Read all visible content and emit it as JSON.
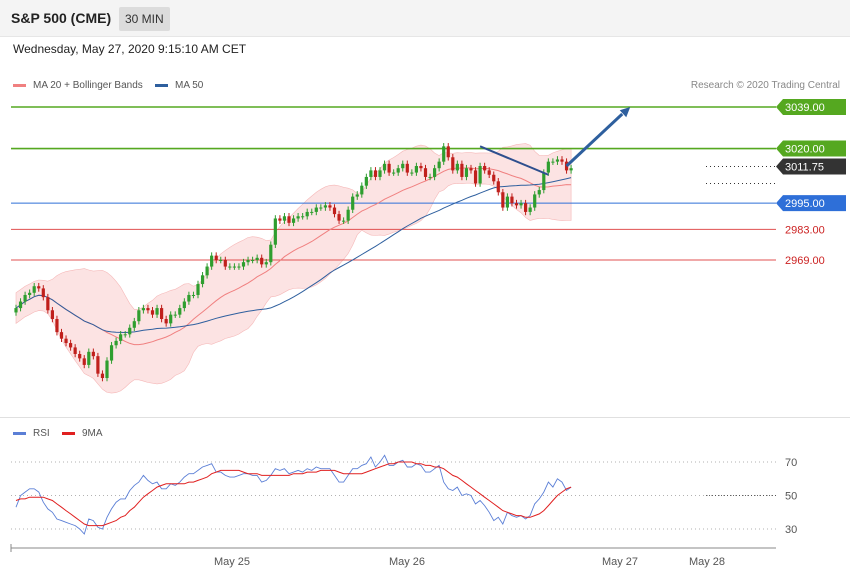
{
  "header": {
    "title": "S&P 500 (CME)",
    "timeframe": "30 MIN",
    "datetime": "Wednesday, May 27, 2020 9:15:10 AM CET",
    "credit": "Research © 2020 Trading Central"
  },
  "legend_main": [
    {
      "label": "MA 20 + Bollinger Bands",
      "color": "#f08080"
    },
    {
      "label": "MA 50",
      "color": "#2e5f9e"
    }
  ],
  "legend_rsi": [
    {
      "label": "RSI",
      "color": "#5b7fd6"
    },
    {
      "label": "9MA",
      "color": "#e02020"
    }
  ],
  "colors": {
    "bull": "#2f9e2f",
    "bear": "#c0201c",
    "resistance": "#55a820",
    "pivot": "#2e6fd8",
    "support": "#e05050",
    "current": "#333333"
  },
  "chart_data": [
    {
      "type": "candlestick",
      "title": "S&P 500 (CME) 30 MIN",
      "ylim": [
        2900,
        3050
      ],
      "x_ticks": [
        "May 25",
        "May 26",
        "May 27",
        "May 28"
      ],
      "levels": [
        {
          "label": "3039.00",
          "value": 3039.0,
          "kind": "resistance"
        },
        {
          "label": "3020.00",
          "value": 3020.0,
          "kind": "resistance"
        },
        {
          "label": "3011.75",
          "value": 3011.75,
          "kind": "current"
        },
        {
          "label": "2995.00",
          "value": 2995.0,
          "kind": "pivot"
        },
        {
          "label": "2983.00",
          "value": 2983.0,
          "kind": "support"
        },
        {
          "label": "2969.00",
          "value": 2969.0,
          "kind": "support"
        }
      ],
      "closes": [
        2947,
        2950,
        2953,
        2954,
        2957,
        2956,
        2952,
        2946,
        2942,
        2936,
        2933,
        2931,
        2929,
        2926,
        2924,
        2921,
        2927,
        2925,
        2917,
        2915,
        2923,
        2930,
        2932,
        2935,
        2935,
        2938,
        2941,
        2946,
        2947,
        2946,
        2944,
        2947,
        2942,
        2940,
        2944,
        2944,
        2947,
        2950,
        2953,
        2953,
        2958,
        2962,
        2966,
        2971,
        2969,
        2969,
        2966,
        2966,
        2966,
        2966,
        2968,
        2969,
        2969,
        2970,
        2967,
        2968,
        2976,
        2988,
        2987,
        2989,
        2986,
        2988,
        2989,
        2989,
        2991,
        2991,
        2993,
        2993,
        2994,
        2993,
        2990,
        2987,
        2987,
        2992,
        2998,
        2999,
        3003,
        3007,
        3010,
        3007,
        3010,
        3013,
        3009,
        3009,
        3011,
        3013,
        3009,
        3009,
        3012,
        3011,
        3007,
        3007,
        3011,
        3014,
        3021,
        3016,
        3010,
        3013,
        3007,
        3011,
        3010,
        3004,
        3012,
        3010,
        3008,
        3005,
        3000,
        2993,
        2998,
        2995,
        2994,
        2995,
        2991,
        2993,
        2999,
        3001,
        3009,
        3014,
        3014,
        3015,
        3014,
        3010,
        3011
      ],
      "annotations": [
        {
          "type": "trendline",
          "from": [
            102,
            3021
          ],
          "to": [
            117,
            3008
          ]
        },
        {
          "type": "arrow",
          "from": [
            121,
            3012
          ],
          "to": [
            135,
            3039
          ]
        }
      ]
    },
    {
      "type": "line",
      "title": "RSI",
      "ylim": [
        20,
        80
      ],
      "y_ticks": [
        70,
        50,
        30
      ],
      "series": [
        {
          "name": "RSI",
          "values": [
            43,
            50,
            52,
            54,
            54,
            52,
            46,
            42,
            40,
            36,
            35,
            34,
            33,
            32,
            30,
            27,
            36,
            35,
            31,
            30,
            37,
            42,
            46,
            48,
            48,
            53,
            56,
            58,
            62,
            59,
            57,
            58,
            54,
            54,
            57,
            56,
            58,
            61,
            63,
            63,
            65,
            67,
            68,
            69,
            64,
            64,
            62,
            61,
            61,
            62,
            63,
            63,
            62,
            62,
            58,
            59,
            62,
            66,
            65,
            66,
            63,
            64,
            65,
            64,
            66,
            65,
            67,
            66,
            66,
            66,
            62,
            58,
            58,
            62,
            66,
            66,
            68,
            69,
            73,
            67,
            70,
            74,
            68,
            68,
            70,
            71,
            67,
            67,
            69,
            68,
            64,
            64,
            66,
            68,
            58,
            54,
            53,
            55,
            50,
            51,
            50,
            45,
            47,
            44,
            40,
            35,
            37,
            33,
            40,
            38,
            37,
            38,
            36,
            38,
            45,
            48,
            52,
            58,
            55,
            60,
            58,
            53,
            55
          ]
        },
        {
          "name": "9MA",
          "values": [
            47,
            48,
            48,
            49,
            49,
            49,
            49,
            48,
            47,
            45,
            43,
            41,
            39,
            37,
            35,
            33,
            32,
            32,
            32,
            32,
            33,
            34,
            35,
            37,
            38,
            41,
            43,
            46,
            49,
            51,
            53,
            55,
            56,
            57,
            57,
            57,
            57,
            57,
            58,
            58,
            59,
            60,
            61,
            63,
            64,
            65,
            65,
            65,
            65,
            65,
            64,
            63,
            63,
            63,
            62,
            62,
            62,
            62,
            62,
            62,
            62,
            63,
            63,
            63,
            64,
            64,
            64,
            65,
            65,
            65,
            65,
            64,
            63,
            63,
            63,
            63,
            63,
            64,
            65,
            66,
            67,
            68,
            69,
            69,
            70,
            70,
            70,
            70,
            69,
            69,
            68,
            68,
            67,
            67,
            66,
            64,
            62,
            61,
            59,
            57,
            55,
            53,
            51,
            49,
            47,
            45,
            43,
            41,
            40,
            39,
            38,
            38,
            37,
            37,
            38,
            39,
            41,
            44,
            47,
            50,
            52,
            54,
            55
          ]
        }
      ],
      "x_ticks": [
        "May 25",
        "May 26",
        "May 27",
        "May 28"
      ]
    }
  ]
}
